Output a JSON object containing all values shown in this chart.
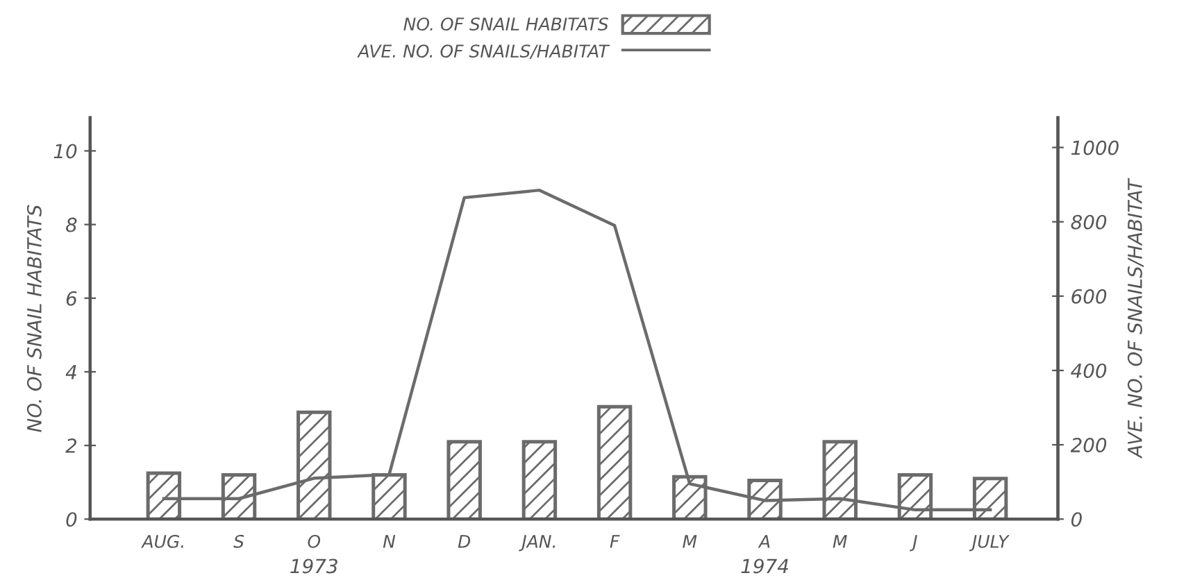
{
  "chart_data": {
    "type": "bar",
    "categories": [
      "AUG.",
      "S",
      "O",
      "N",
      "D",
      "JAN.",
      "F",
      "M",
      "A",
      "M",
      "J",
      "JULY"
    ],
    "series": [
      {
        "name": "NO. OF SNAIL HABITATS",
        "color": "#6b6b6b",
        "values": [
          1.25,
          1.2,
          2.9,
          1.2,
          2.1,
          2.1,
          3.05,
          1.15,
          1.05,
          2.1,
          1.2,
          1.1
        ]
      },
      {
        "name": "AVE. NO. OF SNAILS/HABITAT",
        "type": "line",
        "axis": "y2",
        "color": "#6b6b6b",
        "values": [
          55,
          55,
          110,
          120,
          865,
          885,
          790,
          95,
          50,
          55,
          25,
          25
        ]
      }
    ],
    "ylabel": "NO. OF SNAIL HABITATS",
    "y2label": "AVE. NO. OF SNAILS/HABITAT",
    "ylim": [
      0,
      10.9
    ],
    "yticks": [
      0,
      2,
      4,
      6,
      8,
      10
    ],
    "y2lim": [
      0,
      1080
    ],
    "y2ticks": [
      0,
      200,
      400,
      600,
      800,
      1000
    ],
    "annotations": [
      "1973",
      "1974"
    ],
    "legend": "top",
    "grid": false,
    "marker": "none",
    "line_style": "solid"
  }
}
